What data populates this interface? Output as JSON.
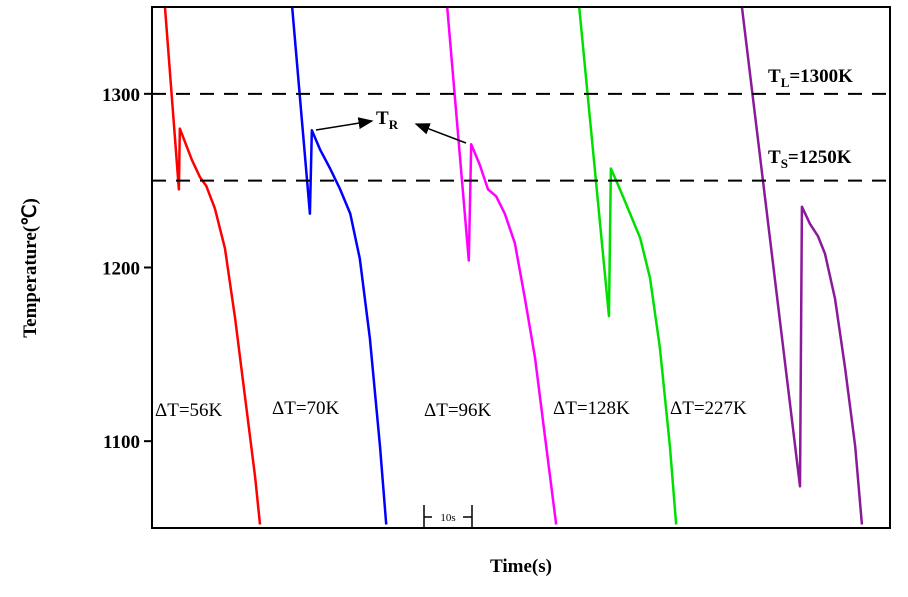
{
  "chart_data": {
    "type": "line",
    "title": "",
    "xlabel": "Time(s)",
    "ylabel": "Temperature(℃)",
    "ylim": [
      1050,
      1350
    ],
    "xlim": [
      0,
      153.75
    ],
    "yticks": [
      1100,
      1200,
      1300
    ],
    "grid": false,
    "scale_bar": "10s",
    "reference_lines": [
      {
        "value": 1300,
        "label_main": "T",
        "label_sub": "L",
        "label_rest": "=1300K"
      },
      {
        "value": 1250,
        "label_main": "T",
        "label_sub": "S",
        "label_rest": "=1250K"
      }
    ],
    "recalescence_label": {
      "main": "T",
      "sub": "R"
    },
    "series": [
      {
        "label": "ΔT=56K",
        "color": "#ff0000",
        "points": [
          [
            2.7,
            1350
          ],
          [
            5.6,
            1245
          ],
          [
            5.8,
            1280
          ],
          [
            8.3,
            1262
          ],
          [
            10,
            1252
          ],
          [
            11.3,
            1247
          ],
          [
            13.1,
            1234
          ],
          [
            15.2,
            1211
          ],
          [
            17.3,
            1171
          ],
          [
            19.4,
            1125
          ],
          [
            21.5,
            1079
          ],
          [
            22.5,
            1052
          ]
        ]
      },
      {
        "label": "ΔT=70K",
        "color": "#0000ff",
        "points": [
          [
            29.2,
            1350
          ],
          [
            32.9,
            1231
          ],
          [
            33.3,
            1279
          ],
          [
            35,
            1268
          ],
          [
            37.1,
            1257
          ],
          [
            39.2,
            1245
          ],
          [
            41.3,
            1231
          ],
          [
            43.3,
            1205
          ],
          [
            45.4,
            1159
          ],
          [
            47.5,
            1097
          ],
          [
            48.8,
            1052
          ]
        ]
      },
      {
        "label": "ΔT=96K",
        "color": "#ff00ff",
        "points": [
          [
            61.5,
            1350
          ],
          [
            66,
            1204
          ],
          [
            66.5,
            1271
          ],
          [
            68.3,
            1259
          ],
          [
            70,
            1245
          ],
          [
            71.7,
            1241
          ],
          [
            73.5,
            1231
          ],
          [
            75.6,
            1214
          ],
          [
            77.7,
            1182
          ],
          [
            79.8,
            1148
          ],
          [
            81.9,
            1102
          ],
          [
            84.2,
            1052
          ]
        ]
      },
      {
        "label": "ΔT=128K",
        "color": "#00e000",
        "points": [
          [
            89,
            1350
          ],
          [
            95.2,
            1172
          ],
          [
            95.6,
            1257
          ],
          [
            97.5,
            1245
          ],
          [
            99.6,
            1231
          ],
          [
            101.7,
            1217
          ],
          [
            103.75,
            1194
          ],
          [
            105.8,
            1154
          ],
          [
            107.9,
            1097
          ],
          [
            109.2,
            1052
          ]
        ]
      },
      {
        "label": "ΔT=227K",
        "color": "#8b1a9a",
        "points": [
          [
            122.9,
            1350
          ],
          [
            135,
            1074
          ],
          [
            135.4,
            1235
          ],
          [
            137.1,
            1225
          ],
          [
            138.75,
            1218
          ],
          [
            140.2,
            1208
          ],
          [
            142.3,
            1182
          ],
          [
            144.4,
            1142
          ],
          [
            146.5,
            1097
          ],
          [
            147.9,
            1052
          ]
        ]
      }
    ]
  }
}
